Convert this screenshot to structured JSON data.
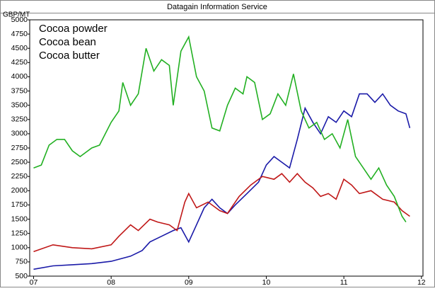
{
  "chart_data": {
    "type": "line",
    "title": "Datagain Information Service",
    "y_label": "GBP/MT",
    "xlim": [
      2006.95,
      2012.02
    ],
    "xticks": [
      {
        "value": 2007,
        "label": "07"
      },
      {
        "value": 2008,
        "label": "08"
      },
      {
        "value": 2009,
        "label": "09"
      },
      {
        "value": 2010,
        "label": "10"
      },
      {
        "value": 2011,
        "label": "11"
      },
      {
        "value": 2012,
        "label": "12"
      }
    ],
    "ylim": [
      500,
      5000
    ],
    "yticks": [
      500,
      750,
      1000,
      1250,
      1500,
      1750,
      2000,
      2250,
      2500,
      2750,
      3000,
      3250,
      3500,
      3750,
      4000,
      4250,
      4500,
      4750,
      5000
    ],
    "grid": false,
    "series": [
      {
        "name": "Cocoa powder",
        "color": "#1a1aa8",
        "x": [
          2007.0,
          2007.25,
          2007.5,
          2007.75,
          2008.0,
          2008.25,
          2008.4,
          2008.5,
          2008.65,
          2008.8,
          2008.9,
          2009.0,
          2009.1,
          2009.2,
          2009.3,
          2009.4,
          2009.5,
          2009.6,
          2009.75,
          2009.9,
          2010.0,
          2010.1,
          2010.2,
          2010.3,
          2010.4,
          2010.5,
          2010.6,
          2010.7,
          2010.8,
          2010.9,
          2011.0,
          2011.1,
          2011.2,
          2011.3,
          2011.4,
          2011.5,
          2011.6,
          2011.7,
          2011.8,
          2011.85
        ],
        "values": [
          620,
          680,
          700,
          720,
          760,
          850,
          950,
          1100,
          1200,
          1300,
          1350,
          1100,
          1400,
          1700,
          1850,
          1700,
          1600,
          1750,
          1950,
          2150,
          2450,
          2600,
          2500,
          2400,
          2900,
          3450,
          3200,
          3000,
          3300,
          3200,
          3400,
          3300,
          3700,
          3700,
          3550,
          3700,
          3500,
          3400,
          3350,
          3100
        ]
      },
      {
        "name": "Cocoa bean",
        "color": "#c01818",
        "x": [
          2007.0,
          2007.25,
          2007.5,
          2007.75,
          2008.0,
          2008.1,
          2008.25,
          2008.35,
          2008.5,
          2008.6,
          2008.75,
          2008.85,
          2008.95,
          2009.0,
          2009.1,
          2009.25,
          2009.4,
          2009.5,
          2009.65,
          2009.8,
          2009.95,
          2010.1,
          2010.2,
          2010.3,
          2010.4,
          2010.5,
          2010.6,
          2010.7,
          2010.8,
          2010.9,
          2011.0,
          2011.1,
          2011.2,
          2011.35,
          2011.5,
          2011.65,
          2011.75,
          2011.85
        ],
        "values": [
          930,
          1050,
          1000,
          980,
          1050,
          1200,
          1400,
          1300,
          1500,
          1450,
          1400,
          1300,
          1800,
          1950,
          1700,
          1800,
          1650,
          1600,
          1900,
          2100,
          2250,
          2200,
          2300,
          2150,
          2300,
          2150,
          2050,
          1900,
          1950,
          1850,
          2200,
          2100,
          1950,
          2000,
          1850,
          1800,
          1650,
          1550
        ]
      },
      {
        "name": "Cocoa butter",
        "color": "#22b022",
        "x": [
          2007.0,
          2007.1,
          2007.2,
          2007.3,
          2007.4,
          2007.5,
          2007.6,
          2007.75,
          2007.85,
          2008.0,
          2008.1,
          2008.15,
          2008.25,
          2008.35,
          2008.45,
          2008.55,
          2008.65,
          2008.75,
          2008.8,
          2008.9,
          2009.0,
          2009.1,
          2009.2,
          2009.3,
          2009.4,
          2009.5,
          2009.6,
          2009.7,
          2009.75,
          2009.85,
          2009.95,
          2010.05,
          2010.15,
          2010.25,
          2010.35,
          2010.45,
          2010.55,
          2010.65,
          2010.75,
          2010.85,
          2010.95,
          2011.05,
          2011.15,
          2011.25,
          2011.35,
          2011.45,
          2011.55,
          2011.65,
          2011.75,
          2011.8
        ],
        "values": [
          2400,
          2450,
          2800,
          2900,
          2900,
          2700,
          2600,
          2750,
          2800,
          3200,
          3400,
          3900,
          3500,
          3700,
          4500,
          4100,
          4300,
          4200,
          3500,
          4450,
          4700,
          4000,
          3750,
          3100,
          3050,
          3500,
          3800,
          3700,
          4000,
          3900,
          3250,
          3350,
          3700,
          3500,
          4050,
          3400,
          3100,
          3200,
          2900,
          3000,
          2750,
          3250,
          2600,
          2400,
          2200,
          2400,
          2100,
          1900,
          1550,
          1450
        ]
      }
    ]
  }
}
